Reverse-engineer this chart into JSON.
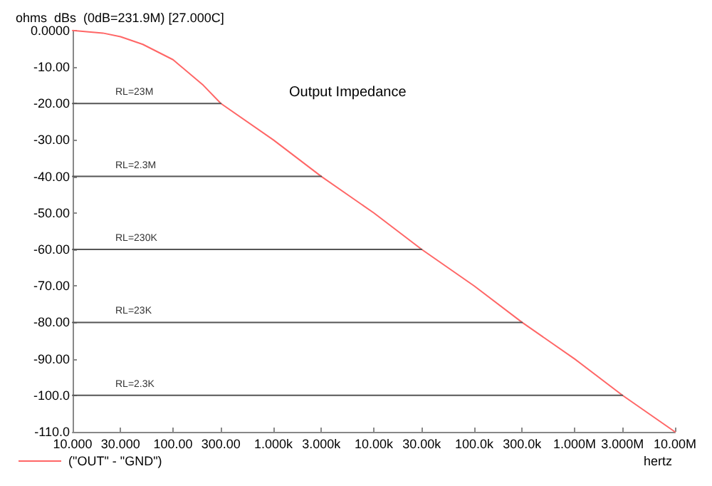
{
  "chart_data": {
    "type": "line",
    "title": "Output Impedance",
    "ylabel": "ohms  dBs  (0dB=231.9M) [27.000C]",
    "xlabel": "hertz",
    "log": "x",
    "grid": false,
    "legend": "bottom left",
    "marker": "none",
    "line_style": "solid",
    "xlim": [
      10,
      10000000
    ],
    "xticks": [
      {
        "value": 10,
        "label": "10.000"
      },
      {
        "value": 30,
        "label": "30.000"
      },
      {
        "value": 100,
        "label": "100.00"
      },
      {
        "value": 300,
        "label": "300.00"
      },
      {
        "value": 1000,
        "label": "1.000k"
      },
      {
        "value": 3000,
        "label": "3.000k"
      },
      {
        "value": 10000,
        "label": "10.00k"
      },
      {
        "value": 30000,
        "label": "30.00k"
      },
      {
        "value": 100000,
        "label": "100.0k"
      },
      {
        "value": 300000,
        "label": "300.0k"
      },
      {
        "value": 1000000,
        "label": "1.000M"
      },
      {
        "value": 3000000,
        "label": "3.000M"
      },
      {
        "value": 10000000,
        "label": "10.00M"
      }
    ],
    "ylim": [
      -110,
      0
    ],
    "yticks": [
      {
        "value": 0,
        "label": "0.0000"
      },
      {
        "value": -10,
        "label": "-10.00"
      },
      {
        "value": -20,
        "label": "-20.00"
      },
      {
        "value": -30,
        "label": "-30.00"
      },
      {
        "value": -40,
        "label": "-40.00"
      },
      {
        "value": -50,
        "label": "-50.00"
      },
      {
        "value": -60,
        "label": "-60.00"
      },
      {
        "value": -70,
        "label": "-70.00"
      },
      {
        "value": -80,
        "label": "-80.00"
      },
      {
        "value": -90,
        "label": "-90.00"
      },
      {
        "value": -100,
        "label": "-100.0"
      },
      {
        "value": -110,
        "label": "-110.0"
      }
    ],
    "series": [
      {
        "name": "(\"OUT\" - \"GND\")",
        "color": "#ff6666",
        "x": [
          10,
          20,
          30,
          50,
          100,
          200,
          300,
          1000,
          3000,
          10000,
          30000,
          100000,
          300000,
          1000000,
          3000000,
          10000000
        ],
        "values": [
          0,
          -0.7,
          -1.7,
          -3.8,
          -8,
          -15,
          -20,
          -30,
          -40,
          -50,
          -60,
          -70,
          -80,
          -90,
          -100,
          -110
        ]
      },
      {
        "name": "RL=23M",
        "color": "#555555",
        "x": [
          10,
          300
        ],
        "values": [
          -20,
          -20
        ]
      },
      {
        "name": "RL=2.3M",
        "color": "#555555",
        "x": [
          10,
          3000
        ],
        "values": [
          -40,
          -40
        ]
      },
      {
        "name": "RL=230K",
        "color": "#555555",
        "x": [
          10,
          30000
        ],
        "values": [
          -60,
          -60
        ]
      },
      {
        "name": "RL=23K",
        "color": "#555555",
        "x": [
          10,
          300000
        ],
        "values": [
          -80,
          -80
        ]
      },
      {
        "name": "RL=2.3K",
        "color": "#555555",
        "x": [
          10,
          3000000
        ],
        "values": [
          -100,
          -100
        ]
      }
    ]
  }
}
